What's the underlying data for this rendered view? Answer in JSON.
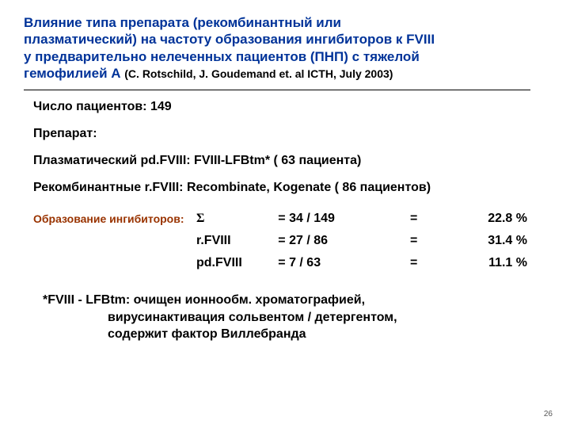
{
  "title": {
    "l1": "Влияние типа препарата (рекомбинантный или",
    "l2": "плазматический) на частоту образования ингибиторов к FVIII",
    "l3": "у предварительно нелеченных пациентов (ПНП) с тяжелой",
    "l4": "гемофилией А",
    "citation": "(C. Rotschild, J. Goudemand et. al ICTH, July 2003)"
  },
  "body": {
    "patients": "Число пациентов: 149",
    "drug_label": "Препарат:",
    "plasma": "Плазматический  pd.FVIII:  FVIII-LFBtm* ( 63 пациента)",
    "recomb": "Рекомбинантные r.FVIII: Recombinate, Kogenate ( 86 пациентов)",
    "inhibitor_label": "Образование ингибиторов:"
  },
  "table": {
    "rows": [
      {
        "name": "Σ",
        "name_class": "sigma",
        "ratio": "=  34 / 149",
        "pct": "22.8 %",
        "pct_class": "val-a"
      },
      {
        "name": "r.FVIII",
        "name_class": "",
        "ratio": "= 27 / 86",
        "pct": "31.4 %",
        "pct_class": "val-b"
      },
      {
        "name": "pd.FVIII",
        "name_class": "",
        "ratio": "=   7 / 63",
        "pct": "11.1 %",
        "pct_class": "val-c"
      }
    ],
    "eq": "="
  },
  "footnote": {
    "l1": "*FVIII - LFBtm: очищен ионнообм. хроматографией,",
    "l2": "вирусинактивация сольвентом / детергентом,",
    "l3": "содержит  фактор Виллебранда"
  },
  "page_number": "26"
}
